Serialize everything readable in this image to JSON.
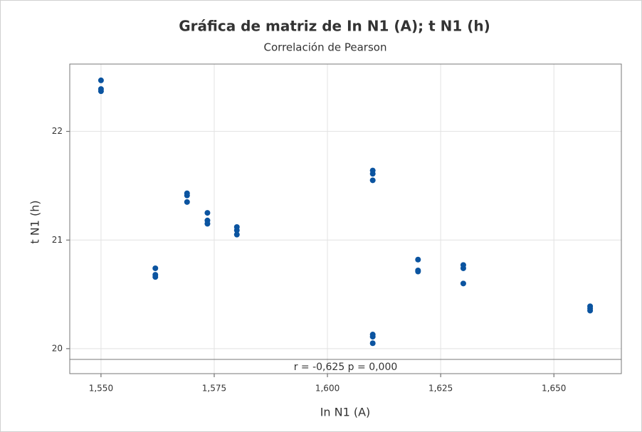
{
  "chart_data": {
    "type": "scatter",
    "title": "Gráfica de matriz de In N1 (A); t N1 (h)",
    "subtitle": "Correlación de Pearson",
    "xlabel": "In N1 (A)",
    "ylabel": "t N1 (h)",
    "annotation": "r = -0,625  p = 0,000",
    "x": [
      1.55,
      1.55,
      1.55,
      1.562,
      1.562,
      1.562,
      1.569,
      1.569,
      1.569,
      1.5735,
      1.5735,
      1.5735,
      1.58,
      1.58,
      1.58,
      1.61,
      1.61,
      1.61,
      1.61,
      1.61,
      1.61,
      1.62,
      1.62,
      1.62,
      1.63,
      1.63,
      1.63,
      1.658,
      1.658,
      1.658
    ],
    "values": [
      22.47,
      22.39,
      22.37,
      20.74,
      20.68,
      20.66,
      21.43,
      21.41,
      21.35,
      21.25,
      21.18,
      21.15,
      21.12,
      21.09,
      21.05,
      21.64,
      21.61,
      21.55,
      20.13,
      20.11,
      20.05,
      20.82,
      20.72,
      20.71,
      20.77,
      20.74,
      20.6,
      20.39,
      20.37,
      20.35
    ],
    "color": "#0b54a0",
    "xlim": [
      1.5431,
      1.6649
    ],
    "ylim": [
      19.77,
      22.62
    ],
    "xticks": [
      {
        "value": 1.55,
        "label": "1,550"
      },
      {
        "value": 1.575,
        "label": "1,575"
      },
      {
        "value": 1.6,
        "label": "1,600"
      },
      {
        "value": 1.625,
        "label": "1,625"
      },
      {
        "value": 1.65,
        "label": "1,650"
      }
    ],
    "yticks": [
      20,
      21,
      22
    ],
    "grid": true
  }
}
